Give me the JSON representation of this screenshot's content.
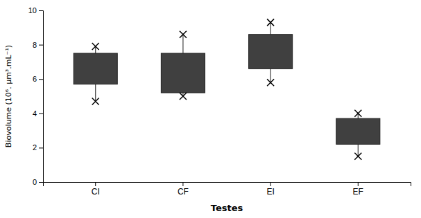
{
  "chart_data": {
    "type": "box",
    "categories": [
      "CI",
      "CF",
      "EI",
      "EF"
    ],
    "boxes": [
      {
        "q1": 5.7,
        "q3": 7.5,
        "min": 4.7,
        "max": 7.9
      },
      {
        "q1": 5.2,
        "q3": 7.5,
        "min": 5.0,
        "max": 8.6
      },
      {
        "q1": 6.6,
        "q3": 8.6,
        "min": 5.8,
        "max": 9.3
      },
      {
        "q1": 2.2,
        "q3": 3.7,
        "min": 1.5,
        "max": 4.0
      }
    ],
    "color": "#404040",
    "marker": "x",
    "xlabel": "Testes",
    "ylabel": "Biovolume (10⁶. μm³.mL⁻¹)",
    "ylim": [
      0,
      10
    ],
    "yticks": [
      0,
      2,
      4,
      6,
      8,
      10
    ],
    "grid": false
  }
}
